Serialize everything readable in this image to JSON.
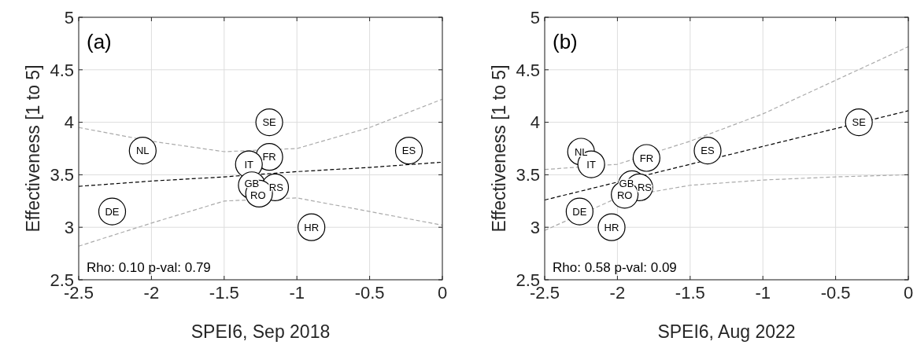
{
  "chart_data": [
    {
      "type": "scatter",
      "xlabel": "SPEI6, Sep 2018",
      "ylabel": "Effectiveness [1 to 5]",
      "annotations": [
        "(a)",
        "Rho: 0.10 p-val: 0.79"
      ],
      "xlim": [
        -2.5,
        0
      ],
      "ylim": [
        2.5,
        5
      ],
      "xticks": [
        -2.5,
        -2,
        -1.5,
        -1,
        -0.5,
        0
      ],
      "yticks": [
        2.5,
        3,
        3.5,
        4,
        4.5,
        5
      ],
      "grid": true,
      "marker": "circle",
      "series": [
        {
          "type": "line",
          "color": "#000000",
          "line_style": "dashed",
          "marker": "none",
          "x": [
            -2.5,
            -2,
            -1.5,
            -1,
            -0.5,
            0
          ],
          "values": [
            3.39,
            3.44,
            3.48,
            3.53,
            3.57,
            3.62
          ]
        },
        {
          "type": "line",
          "color": "#aaaaaa",
          "line_style": "dashed",
          "marker": "none",
          "x": [
            -2.5,
            -2,
            -1.5,
            -1,
            -0.5,
            0
          ],
          "values": [
            2.82,
            3.04,
            3.25,
            3.28,
            3.15,
            3.02
          ]
        },
        {
          "type": "line",
          "color": "#aaaaaa",
          "line_style": "dashed",
          "marker": "none",
          "x": [
            -2.5,
            -2,
            -1.5,
            -1,
            -0.5,
            0
          ],
          "values": [
            3.95,
            3.82,
            3.72,
            3.75,
            3.95,
            4.22
          ]
        },
        {
          "type": "scatter",
          "color": "#000000",
          "x": [
            -1.19,
            -2.06,
            -0.23,
            -1.19,
            -1.33,
            -1.31,
            -1.15,
            -1.26,
            -2.27,
            -0.9
          ],
          "values": [
            4.0,
            3.73,
            3.73,
            3.67,
            3.6,
            3.4,
            3.38,
            3.32,
            3.15,
            3.0
          ],
          "value_labels": [
            "SE",
            "NL",
            "ES",
            "FR",
            "IT",
            "GB",
            "RS",
            "RO",
            "DE",
            "HR"
          ]
        }
      ]
    },
    {
      "type": "scatter",
      "xlabel": "SPEI6, Aug 2022",
      "ylabel": "Effectiveness [1 to 5]",
      "annotations": [
        "(b)",
        "Rho: 0.58 p-val: 0.09"
      ],
      "xlim": [
        -2.5,
        0
      ],
      "ylim": [
        2.5,
        5
      ],
      "xticks": [
        -2.5,
        -2,
        -1.5,
        -1,
        -0.5,
        0
      ],
      "yticks": [
        2.5,
        3,
        3.5,
        4,
        4.5,
        5
      ],
      "grid": true,
      "marker": "circle",
      "series": [
        {
          "type": "line",
          "color": "#000000",
          "line_style": "dashed",
          "marker": "none",
          "x": [
            -2.5,
            -2,
            -1.5,
            -1,
            -0.5,
            0
          ],
          "values": [
            3.26,
            3.43,
            3.6,
            3.77,
            3.94,
            4.11
          ]
        },
        {
          "type": "line",
          "color": "#aaaaaa",
          "line_style": "dashed",
          "marker": "none",
          "x": [
            -2.5,
            -2,
            -1.5,
            -1,
            -0.5,
            0
          ],
          "values": [
            2.97,
            3.28,
            3.4,
            3.45,
            3.48,
            3.5
          ]
        },
        {
          "type": "line",
          "color": "#aaaaaa",
          "line_style": "dashed",
          "marker": "none",
          "x": [
            -2.5,
            -2,
            -1.5,
            -1,
            -0.5,
            0
          ],
          "values": [
            3.55,
            3.6,
            3.82,
            4.08,
            4.4,
            4.72
          ]
        },
        {
          "type": "scatter",
          "color": "#000000",
          "x": [
            -0.34,
            -1.38,
            -1.8,
            -2.25,
            -2.18,
            -1.9,
            -1.85,
            -1.95,
            -2.26,
            -2.04
          ],
          "values": [
            4.0,
            3.73,
            3.66,
            3.72,
            3.6,
            3.41,
            3.38,
            3.31,
            3.15,
            3.0
          ],
          "value_labels": [
            "SE",
            "ES",
            "FR",
            "NL",
            "IT",
            "GB",
            "RS",
            "RO",
            "DE",
            "HR"
          ]
        }
      ]
    }
  ]
}
